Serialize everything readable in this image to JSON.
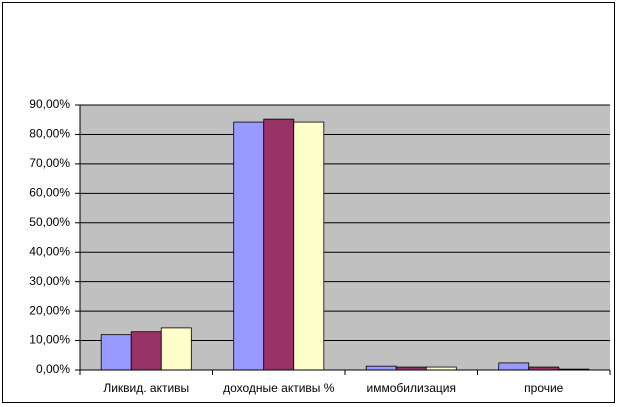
{
  "chart_data": {
    "type": "bar",
    "categories": [
      "Ликвид. активы",
      "доходные активы  %",
      "иммобилизация",
      "прочие"
    ],
    "series": [
      {
        "color": "#9999ff",
        "values": [
          12,
          84.2,
          1.3,
          2.4
        ]
      },
      {
        "color": "#993366",
        "values": [
          13,
          85.2,
          1.0,
          1.0
        ]
      },
      {
        "color": "#ffffcc",
        "values": [
          14.3,
          84.2,
          1.0,
          0.3
        ]
      }
    ],
    "ylim": [
      0,
      90
    ],
    "yticks": [
      {
        "value": 0,
        "label": "0,00%"
      },
      {
        "value": 10,
        "label": "10,00%"
      },
      {
        "value": 20,
        "label": "20,00%"
      },
      {
        "value": 30,
        "label": "30,00%"
      },
      {
        "value": 40,
        "label": "40,00%"
      },
      {
        "value": 50,
        "label": "50,00%"
      },
      {
        "value": 60,
        "label": "60,00%"
      },
      {
        "value": 70,
        "label": "70,00%"
      },
      {
        "value": 80,
        "label": "80,00%"
      },
      {
        "value": 90,
        "label": "90,00%"
      }
    ],
    "grid": true,
    "background": "#c0c0c0"
  }
}
